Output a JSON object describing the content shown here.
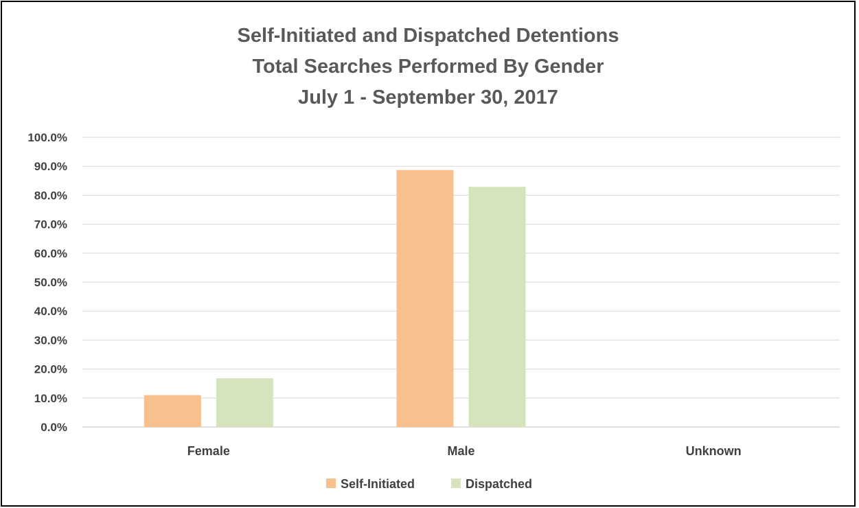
{
  "chart_data": {
    "type": "bar",
    "title_lines": [
      "Self-Initiated and Dispatched Detentions",
      "Total Searches Performed By Gender",
      "July 1 - September 30, 2017"
    ],
    "categories": [
      "Female",
      "Male",
      "Unknown"
    ],
    "series": [
      {
        "name": "Self-Initiated",
        "color": "#F8C08E",
        "values": [
          11.0,
          88.7,
          0.0
        ]
      },
      {
        "name": "Dispatched",
        "color": "#D6E4BB",
        "values": [
          16.8,
          82.9,
          0.0
        ]
      }
    ],
    "y_ticks": [
      "0.0%",
      "10.0%",
      "20.0%",
      "30.0%",
      "40.0%",
      "50.0%",
      "60.0%",
      "70.0%",
      "80.0%",
      "90.0%",
      "100.0%"
    ],
    "ylim": [
      0,
      100
    ],
    "y_format": "percent",
    "grid": true,
    "legend_position": "bottom"
  }
}
